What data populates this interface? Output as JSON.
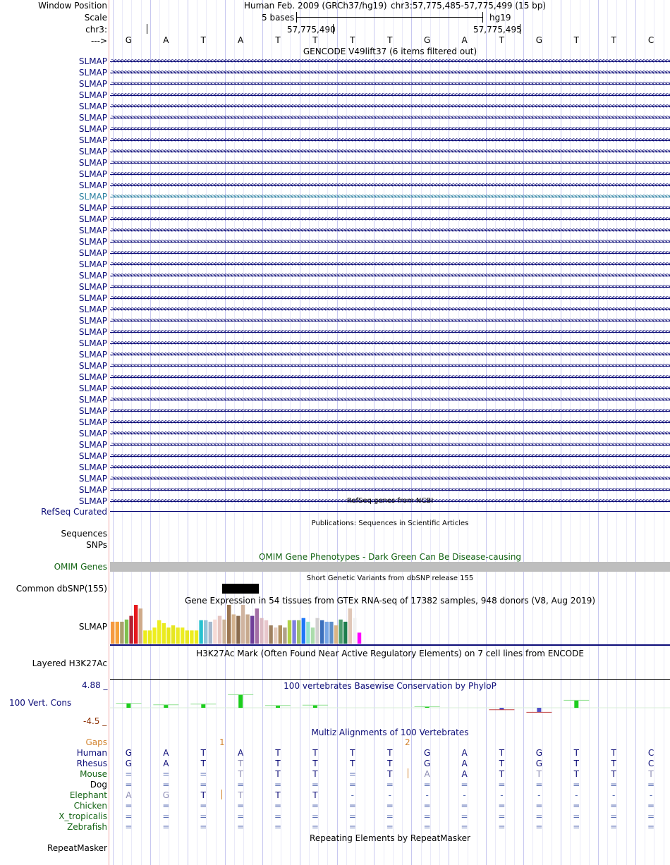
{
  "header": {
    "window_position_label": "Window Position",
    "scale_label": "Scale",
    "chrom_label": "chr3:",
    "strand_label": "--->",
    "assembly_title": "Human Feb. 2009 (GRCh37/hg19)",
    "position": "chr3:57,775,485-57,775,499 (15 bp)",
    "scale_text": "5 bases",
    "db": "hg19",
    "coord_1": "57,775,490",
    "coord_2": "57,775,495"
  },
  "sequence": [
    "G",
    "A",
    "T",
    "A",
    "T",
    "T",
    "T",
    "T",
    "G",
    "A",
    "T",
    "G",
    "T",
    "T",
    "C"
  ],
  "gencode": {
    "title": "GENCODE V49lift37 (6 items filtered out)",
    "items": [
      "SLMAP",
      "SLMAP",
      "SLMAP",
      "SLMAP",
      "SLMAP",
      "SLMAP",
      "SLMAP",
      "SLMAP",
      "SLMAP",
      "SLMAP",
      "SLMAP",
      "SLMAP",
      "SLMAP",
      "SLMAP",
      "SLMAP",
      "SLMAP",
      "SLMAP",
      "SLMAP",
      "SLMAP",
      "SLMAP",
      "SLMAP",
      "SLMAP",
      "SLMAP",
      "SLMAP",
      "SLMAP",
      "SLMAP",
      "SLMAP",
      "SLMAP",
      "SLMAP",
      "SLMAP",
      "SLMAP",
      "SLMAP",
      "SLMAP",
      "SLMAP",
      "SLMAP",
      "SLMAP",
      "SLMAP",
      "SLMAP",
      "SLMAP",
      "SLMAP"
    ],
    "highlight_index": 12,
    "color": "#0c0c78",
    "highlight_color": "#2a7fa0"
  },
  "refseq": {
    "label": "RefSeq Curated",
    "title": "RefSeq genes from NCBI",
    "color": "#0c0c78"
  },
  "publications": {
    "title": "Publications: Sequences in Scientific Articles",
    "label_1": "Sequences",
    "label_2": "SNPs"
  },
  "omim": {
    "label": "OMIM Genes",
    "title": "OMIM Gene Phenotypes - Dark Green Can Be Disease-causing",
    "color": "#146414"
  },
  "dbsnp": {
    "label": "Common dbSNP(155)",
    "title": "Short Genetic Variants from dbSNP release 155"
  },
  "gtex": {
    "label": "SLMAP",
    "title": "Gene Expression in 54 tissues from GTEx RNA-seq of 17382 samples, 948 donors (V8, Aug 2019)",
    "values": [
      30,
      30,
      30,
      33,
      38,
      53,
      48,
      18,
      18,
      22,
      32,
      28,
      22,
      25,
      22,
      22,
      18,
      18,
      18,
      32,
      32,
      30,
      33,
      38,
      33,
      53,
      40,
      38,
      53,
      40,
      38,
      48,
      35,
      32,
      25,
      22,
      25,
      22,
      32,
      32,
      32,
      35,
      30,
      22,
      35,
      32,
      30,
      30,
      25,
      33,
      30,
      48,
      35,
      15
    ],
    "colors": [
      "#f59a41",
      "#f7a13a",
      "#aaa06d",
      "#7fbf4f",
      "#b22234",
      "#e6191e",
      "#cfab8a",
      "#ecec1a",
      "#eaea1c",
      "#eeee1d",
      "#eded22",
      "#ebeb1f",
      "#e8e81a",
      "#e6e621",
      "#ebeb24",
      "#eded22",
      "#e8e822",
      "#eded1d",
      "#ecec1f",
      "#27c1cf",
      "#92c4d9",
      "#a4b8cd",
      "#f6dad5",
      "#e5c4c0",
      "#cdb49a",
      "#9b7552",
      "#d4b38f",
      "#8b6c4e",
      "#d0b4a0",
      "#c7a98d",
      "#6f3f99",
      "#a36fa6",
      "#dcbac3",
      "#e8c7cc",
      "#9f8160",
      "#e3cbbd",
      "#b1905f",
      "#b0a189",
      "#b1d146",
      "#7e7fe0",
      "#9dc26b",
      "#1f78f8",
      "#92e4cd",
      "#abdcab",
      "#d2d0d1",
      "#3b6fbd",
      "#77a6e6",
      "#5d8ec9",
      "#d9b586",
      "#4e9e6e",
      "#1e7d4d",
      "#e0c7b8",
      "#f2f2f2",
      "#ff00ff"
    ]
  },
  "h3k27ac": {
    "label": "Layered H3K27Ac",
    "title": "H3K27Ac Mark (Often Found Near Active Regulatory Elements) on 7 cell lines from ENCODE"
  },
  "cons": {
    "label": "100 Vert. Cons",
    "title": "100 vertebrates Basewise Conservation by PhyloP",
    "ymax": "4.88 _",
    "ymin": "-4.5 _",
    "values": [
      1.2,
      0.8,
      1.0,
      3.5,
      0.6,
      0.7,
      0.0,
      0.0,
      0.3,
      0.0,
      -0.5,
      -1.2,
      2.0,
      0.0,
      0.0
    ],
    "ylim": [
      -4.5,
      4.88
    ]
  },
  "multiz": {
    "title": "Multiz Alignments of 100 Vertebrates",
    "gaps_label": "Gaps",
    "gap_1": "1",
    "gap_2": "2",
    "species": [
      {
        "name": "Human",
        "color": "#0c0c78",
        "bases": [
          "G",
          "A",
          "T",
          "A",
          "T",
          "T",
          "T",
          "T",
          "G",
          "A",
          "T",
          "G",
          "T",
          "T",
          "C"
        ]
      },
      {
        "name": "Rhesus",
        "color": "#0c0c78",
        "bases": [
          "G",
          "A",
          "T",
          "T",
          "T",
          "T",
          "T",
          "T",
          "G",
          "A",
          "T",
          "G",
          "T",
          "T",
          "C"
        ]
      },
      {
        "name": "Mouse",
        "color": "#146414",
        "bases": [
          "=",
          "=",
          "=",
          "T",
          "T",
          "T",
          "=",
          "T",
          "A",
          "A",
          "T",
          "T",
          "T",
          "T",
          "T"
        ]
      },
      {
        "name": "Dog",
        "color": "#000000",
        "bases": [
          "=",
          "=",
          "=",
          "=",
          "=",
          "=",
          "=",
          "=",
          "=",
          "=",
          "=",
          "=",
          "=",
          "=",
          "="
        ]
      },
      {
        "name": "Elephant",
        "color": "#146414",
        "bases": [
          "A",
          "G",
          "T",
          "T",
          "T",
          "T",
          "-",
          "-",
          "-",
          "-",
          "-",
          "-",
          "-",
          "-",
          "-"
        ]
      },
      {
        "name": "Chicken",
        "color": "#146414",
        "bases": [
          "=",
          "=",
          "=",
          "=",
          "=",
          "=",
          "=",
          "=",
          "=",
          "=",
          "=",
          "=",
          "=",
          "=",
          "="
        ]
      },
      {
        "name": "X_tropicalis",
        "color": "#146414",
        "bases": [
          "=",
          "=",
          "=",
          "=",
          "=",
          "=",
          "=",
          "=",
          "=",
          "=",
          "=",
          "=",
          "=",
          "=",
          "="
        ]
      },
      {
        "name": "Zebrafish",
        "color": "#146414",
        "bases": [
          "=",
          "=",
          "=",
          "=",
          "=",
          "=",
          "=",
          "=",
          "=",
          "=",
          "=",
          "=",
          "=",
          "=",
          "="
        ]
      }
    ]
  },
  "repeatmasker": {
    "label": "RepeatMasker",
    "title": "Repeating Elements by RepeatMasker"
  }
}
